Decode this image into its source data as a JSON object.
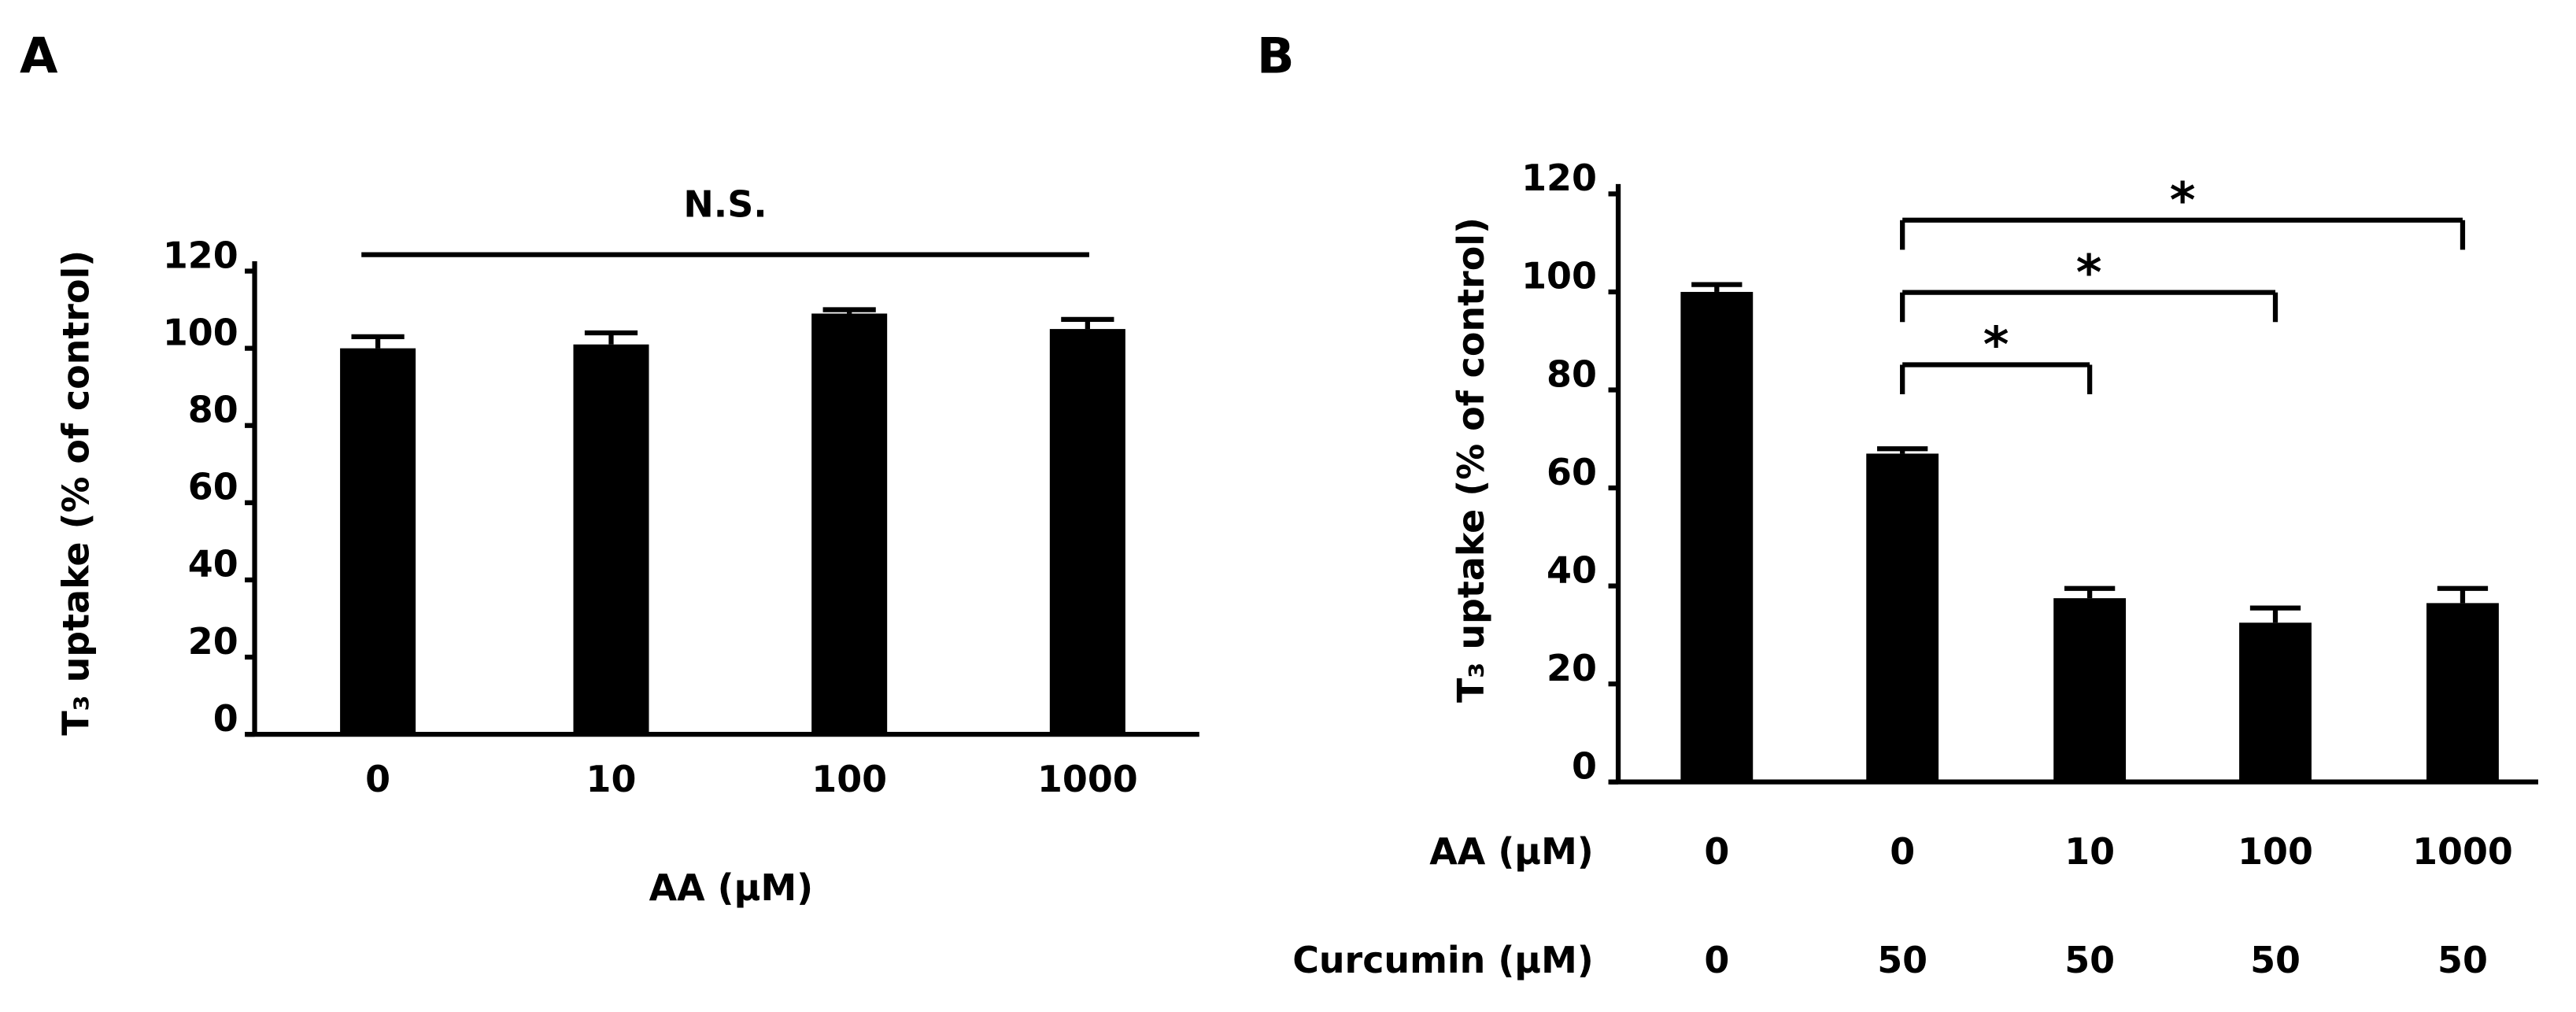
{
  "chart_data": [
    {
      "type": "bar",
      "panel": "A",
      "y_label": "T₃ uptake (% of control)",
      "x_label": "AA (μM)",
      "categories": [
        "0",
        "10",
        "100",
        "1000"
      ],
      "values": [
        100,
        101,
        109,
        105
      ],
      "errors": [
        3,
        3,
        1,
        2.5
      ],
      "color": "#000000",
      "ylim": [
        0,
        120
      ],
      "yticks": [
        0,
        20,
        40,
        60,
        80,
        100,
        120
      ],
      "annotation": "N.S."
    },
    {
      "type": "bar",
      "panel": "B",
      "y_label": "T₃ uptake (% of control)",
      "category_rows": [
        {
          "label": "AA (μM)",
          "categories": [
            "0",
            "0",
            "10",
            "100",
            "1000"
          ]
        },
        {
          "label": "Curcumin (μM)",
          "categories": [
            "0",
            "50",
            "50",
            "50",
            "50"
          ]
        }
      ],
      "values": [
        100,
        67,
        37.5,
        32.5,
        36.5
      ],
      "errors": [
        1.5,
        1,
        2,
        3,
        3
      ],
      "color": "#000000",
      "ylim": [
        0,
        120
      ],
      "yticks": [
        0,
        20,
        40,
        60,
        80,
        100,
        120
      ],
      "brackets": [
        {
          "label": "*",
          "categories": [
            1,
            2
          ]
        },
        {
          "label": "*",
          "categories": [
            1,
            3
          ]
        },
        {
          "label": "*",
          "categories": [
            1,
            4
          ]
        }
      ]
    }
  ]
}
